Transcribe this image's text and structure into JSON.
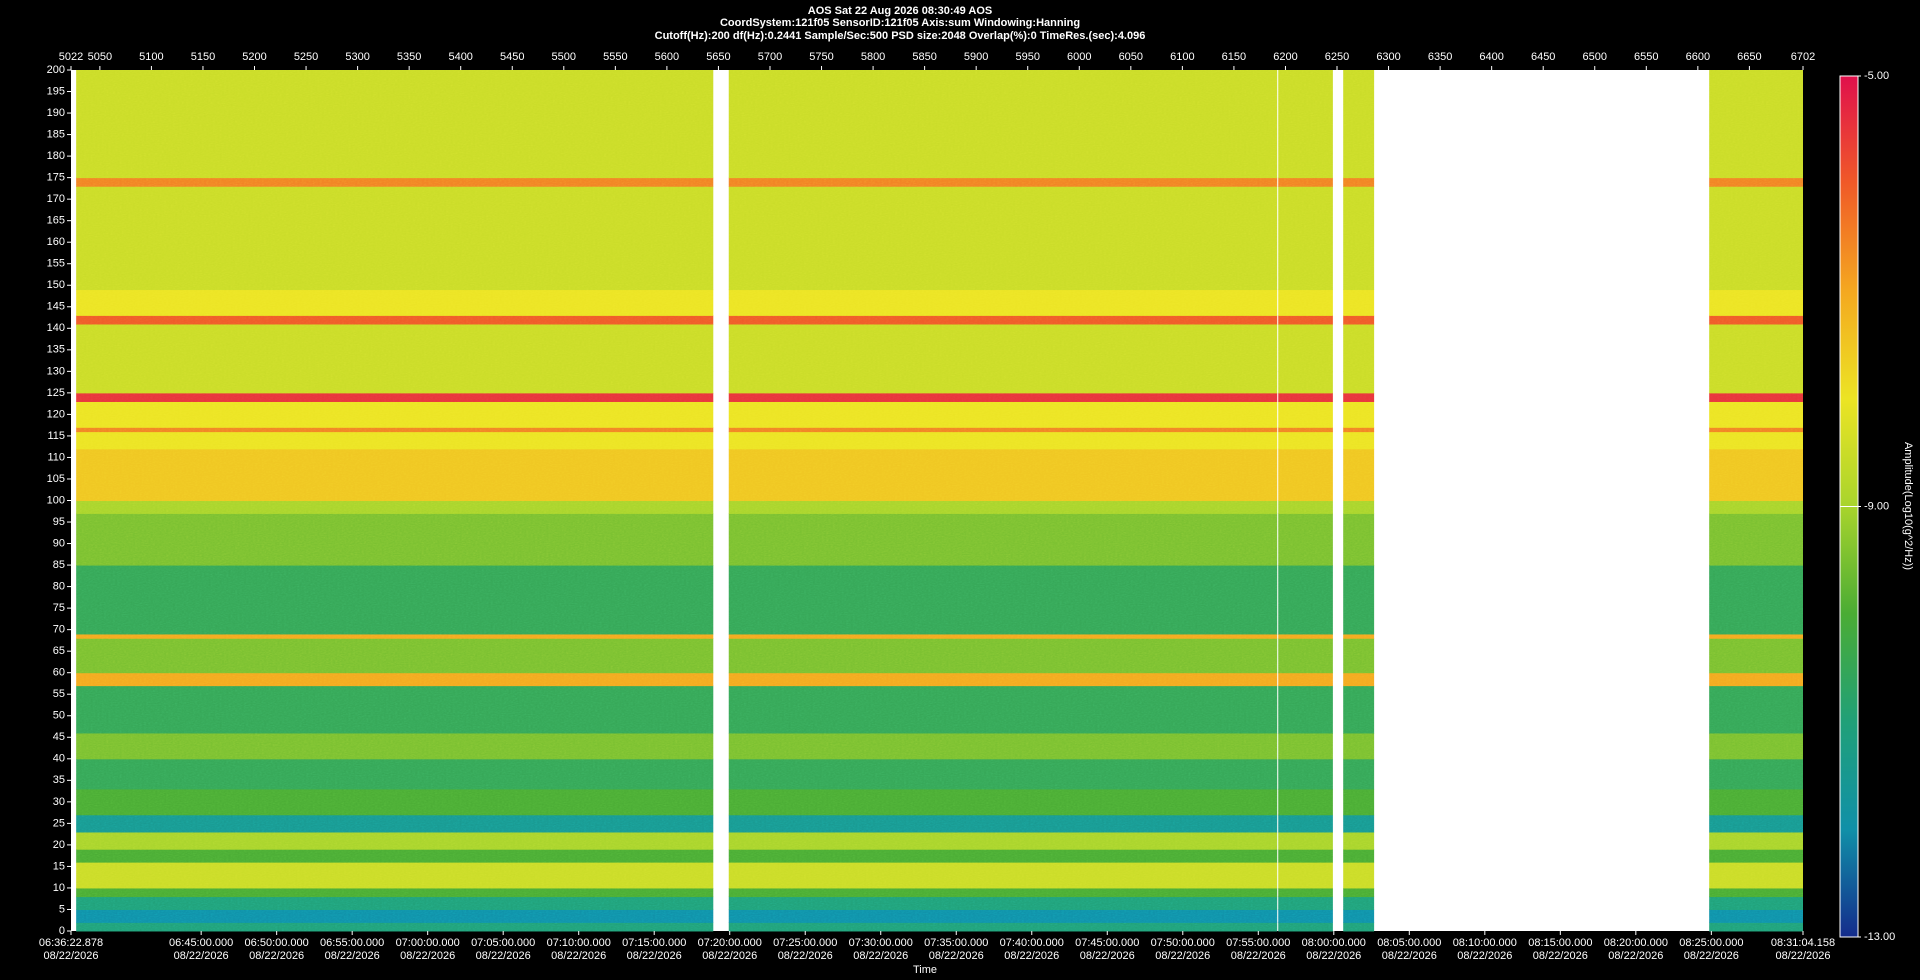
{
  "chart_data": {
    "type": "spectrogram",
    "title": "AOS  Sat 22 Aug 2026 08:30:49  AOS",
    "subtitle": "CoordSystem:121f05   SensorID:121f05   Axis:sum   Windowing:Hanning",
    "settings_line": "Cutoff(Hz):200     df(Hz):0.2441     Sample/Sec:500     PSD size:2048     Overlap(%):0     TimeRes.(sec):4.096",
    "x_label": "Time",
    "colorbar_label": "Amplitude(Log10(g^2/Hz))",
    "xlim": [
      5022,
      6702
    ],
    "xticks": [
      5022,
      5050,
      5100,
      5150,
      5200,
      5250,
      5300,
      5350,
      5400,
      5450,
      5500,
      5550,
      5600,
      5650,
      5700,
      5750,
      5800,
      5850,
      5900,
      5950,
      6000,
      6050,
      6100,
      6150,
      6200,
      6250,
      6300,
      6350,
      6400,
      6450,
      6500,
      6550,
      6600,
      6650,
      6702
    ],
    "x2lim": [
      "06:36:22.878",
      "08:31:04.158"
    ],
    "x2ticks": [
      "06:36:22.878",
      "06:45:00.000",
      "06:50:00.000",
      "06:55:00.000",
      "07:00:00.000",
      "07:05:00.000",
      "07:10:00.000",
      "07:15:00.000",
      "07:20:00.000",
      "07:25:00.000",
      "07:30:00.000",
      "07:35:00.000",
      "07:40:00.000",
      "07:45:00.000",
      "07:50:00.000",
      "07:55:00.000",
      "08:00:00.000",
      "08:05:00.000",
      "08:10:00.000",
      "08:15:00.000",
      "08:20:00.000",
      "08:25:00.000",
      "08:31:04.158"
    ],
    "x2_date": "08/22/2026",
    "ylim": [
      0,
      200
    ],
    "yticks": [
      0,
      5,
      10,
      15,
      20,
      25,
      30,
      35,
      40,
      45,
      50,
      55,
      60,
      65,
      70,
      75,
      80,
      85,
      90,
      95,
      100,
      105,
      110,
      115,
      120,
      125,
      130,
      135,
      140,
      145,
      150,
      155,
      160,
      165,
      170,
      175,
      180,
      185,
      190,
      195,
      200
    ],
    "clim": [
      -13,
      -5
    ],
    "cticks": [
      {
        "value": -5,
        "label": "-5.00"
      },
      {
        "value": -9,
        "label": "-9.00"
      },
      {
        "value": -13,
        "label": "-13.00"
      }
    ],
    "colormap": [
      "#142c8c",
      "#1090a8",
      "#20a078",
      "#4aac34",
      "#a8d42c",
      "#ece424",
      "#f4a820",
      "#f05a28",
      "#e0104c"
    ],
    "segments": [
      [
        5027,
        5645
      ],
      [
        5660,
        6192
      ],
      [
        6193,
        6246
      ],
      [
        6256,
        6286
      ],
      [
        6611,
        6702
      ]
    ],
    "freq_edges": [
      0,
      2,
      5,
      8,
      10,
      16,
      19,
      23,
      27,
      33,
      40,
      46,
      57,
      60,
      68,
      69,
      85,
      97,
      100,
      112,
      116,
      117,
      123,
      125,
      130,
      141,
      143,
      149,
      173,
      175,
      200
    ],
    "levels": [
      -11,
      -12,
      -11,
      -10,
      -8.5,
      -10,
      -9,
      -11.5,
      -10,
      -10.5,
      -9.5,
      -10.5,
      -7,
      -9.5,
      -7,
      -10.5,
      -9.5,
      -9,
      -7.5,
      -8,
      -6.5,
      -8,
      -5.5,
      -8.5,
      -8.5,
      -6,
      -8,
      -8.5,
      -6.5,
      -8.5
    ]
  }
}
